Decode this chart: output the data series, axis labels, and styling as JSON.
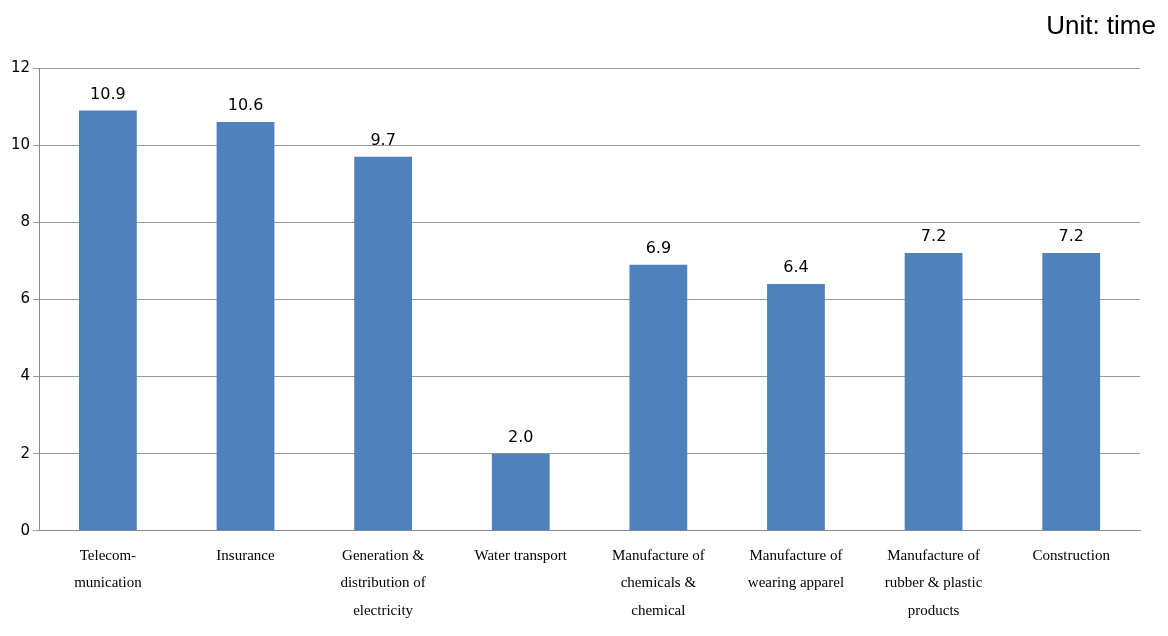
{
  "chart_data": {
    "type": "bar",
    "categories": [
      "Telecom-munication",
      "Insurance",
      "Generation & distribution of electricity",
      "Water transport",
      "Manufacture of chemicals & chemical",
      "Manufacture of wearing apparel",
      "Manufacture of rubber & plastic products",
      "Construction"
    ],
    "values": [
      10.9,
      10.6,
      9.7,
      2.0,
      6.9,
      6.4,
      7.2,
      7.2
    ],
    "value_labels": [
      "10.9",
      "10.6",
      "9.7",
      "2.0",
      "6.9",
      "6.4",
      "7.2",
      "7.2"
    ],
    "color": "#4f81bd",
    "ylim": [
      0,
      12
    ],
    "yticks": [
      0,
      2,
      4,
      6,
      8,
      10,
      12
    ],
    "grid": "y",
    "annotations": [
      "Unit: time"
    ]
  }
}
